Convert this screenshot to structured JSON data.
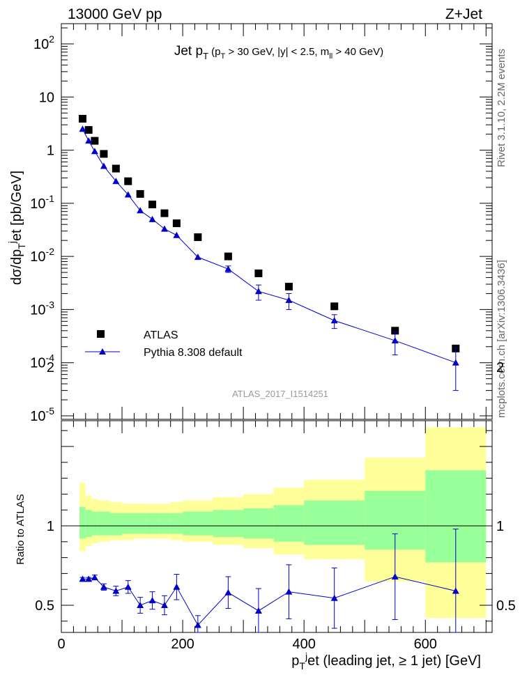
{
  "header": {
    "left": "13000 GeV pp",
    "right": "Z+Jet"
  },
  "side_labels": {
    "rivet": "Rivet 3.1.10,  2.2M events",
    "mcplots": "mcplots.cern.ch [arXiv:1306.3436]"
  },
  "chart_data": [
    {
      "type": "scatter",
      "panel": "main",
      "title": "Jet p_T (p_T > 30 GeV, |y| < 2.5, m_ll > 40 GeV)",
      "ylabel": "dσ/dp_T^j et [pb/GeV]",
      "analysis_tag": "ATLAS_2017_I1514251",
      "yscale": "log",
      "ylim": [
        1e-05,
        250
      ],
      "xlim": [
        0,
        710
      ],
      "y_ticks": [
        "10^-5",
        "10^-4",
        "10^-3",
        "10^-2",
        "10^-1",
        "1",
        "10",
        "10^2"
      ],
      "legend_position": "lower-left",
      "series": [
        {
          "name": "ATLAS",
          "color": "#000000",
          "marker": "square",
          "x": [
            35,
            45,
            55,
            70,
            90,
            110,
            130,
            150,
            170,
            190,
            225,
            275,
            325,
            375,
            450,
            550,
            650
          ],
          "y": [
            3.9,
            2.4,
            1.5,
            0.85,
            0.45,
            0.26,
            0.15,
            0.095,
            0.065,
            0.042,
            0.023,
            0.01,
            0.0048,
            0.0027,
            0.00115,
            0.0004,
            0.000185
          ]
        },
        {
          "name": "Pythia 8.308 default",
          "color": "#0000cc",
          "marker": "triangle",
          "x": [
            35,
            45,
            55,
            70,
            90,
            110,
            130,
            150,
            170,
            190,
            225,
            275,
            325,
            375,
            450,
            550,
            650
          ],
          "y": [
            2.5,
            1.5,
            0.95,
            0.5,
            0.26,
            0.145,
            0.073,
            0.05,
            0.033,
            0.025,
            0.0097,
            0.0058,
            0.0022,
            0.0015,
            0.00062,
            0.00026,
            0.0001
          ],
          "yerr_low": [
            0,
            0,
            0,
            0,
            0,
            0,
            0,
            0,
            0,
            0,
            0,
            0.0008,
            0.0007,
            0.0005,
            0.00018,
            0.00012,
            7e-05
          ],
          "yerr_high": [
            0,
            0,
            0,
            0,
            0,
            0,
            0,
            0,
            0,
            0,
            0,
            0.0008,
            0.0007,
            0.0005,
            0.00018,
            0.00012,
            9e-05
          ]
        }
      ]
    },
    {
      "type": "line",
      "panel": "ratio",
      "ylabel": "Ratio to ATLAS",
      "xlabel": "p_T^j et (leading jet, ≥ 1 jet) [GeV]",
      "xlim": [
        0,
        710
      ],
      "ylim": [
        0.34,
        2.3
      ],
      "x_ticks": [
        0,
        200,
        400,
        600
      ],
      "y_ticks": [
        0.5,
        1,
        2
      ],
      "uncertainty_bands": {
        "edges": [
          30,
          40,
          50,
          60,
          80,
          100,
          120,
          140,
          160,
          180,
          200,
          250,
          300,
          350,
          400,
          500,
          600,
          700
        ],
        "inner_low": [
          0.92,
          0.93,
          0.94,
          0.94,
          0.94,
          0.95,
          0.95,
          0.95,
          0.95,
          0.95,
          0.94,
          0.93,
          0.92,
          0.9,
          0.88,
          0.85,
          0.77
        ],
        "inner_high": [
          1.12,
          1.1,
          1.09,
          1.09,
          1.08,
          1.08,
          1.08,
          1.08,
          1.08,
          1.08,
          1.09,
          1.1,
          1.11,
          1.13,
          1.16,
          1.22,
          1.35
        ],
        "outer_low": [
          0.84,
          0.87,
          0.89,
          0.9,
          0.91,
          0.91,
          0.92,
          0.92,
          0.92,
          0.91,
          0.9,
          0.88,
          0.86,
          0.82,
          0.79,
          0.65,
          0.42
        ],
        "outer_high": [
          1.27,
          1.19,
          1.17,
          1.16,
          1.15,
          1.14,
          1.14,
          1.14,
          1.14,
          1.15,
          1.16,
          1.18,
          1.2,
          1.24,
          1.29,
          1.43,
          1.62
        ],
        "inner_color": "#99ff99",
        "outer_color": "#ffff99"
      },
      "series": [
        {
          "name": "Pythia 8.308 default",
          "color": "#0000cc",
          "x": [
            35,
            45,
            55,
            70,
            90,
            110,
            130,
            150,
            170,
            190,
            225,
            275,
            325,
            375,
            450,
            550,
            650
          ],
          "y": [
            0.665,
            0.665,
            0.675,
            0.615,
            0.59,
            0.615,
            0.5,
            0.53,
            0.5,
            0.615,
            0.375,
            0.58,
            0.465,
            0.585,
            0.545,
            0.68,
            0.59
          ],
          "err": [
            0.01,
            0.01,
            0.015,
            0.02,
            0.03,
            0.04,
            0.05,
            0.055,
            0.06,
            0.08,
            0.06,
            0.1,
            0.14,
            0.17,
            0.19,
            0.27,
            0.39
          ]
        }
      ]
    }
  ]
}
